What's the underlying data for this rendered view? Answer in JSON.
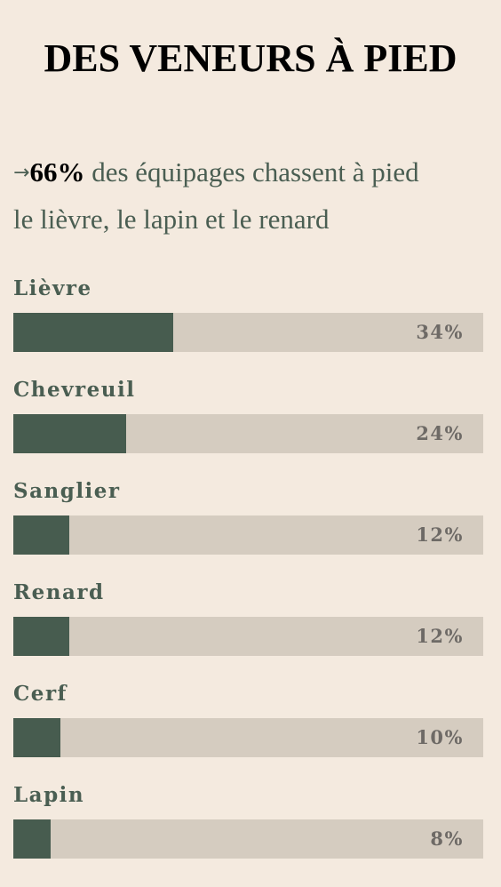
{
  "title": "DES VENEURS À PIED",
  "intro": {
    "arrow": "→",
    "highlight": "66%",
    "text_line1": " des équipages chassent à pied",
    "text_line2": "le lièvre, le lapin et le renard"
  },
  "colors": {
    "background": "#f4eadf",
    "bar_fill": "#475c4f",
    "bar_track": "#d5ccc0",
    "label_text": "#4a5e52",
    "value_text": "#6e6a66"
  },
  "chart_data": {
    "type": "bar",
    "orientation": "horizontal",
    "categories": [
      "Lièvre",
      "Chevreuil",
      "Sanglier",
      "Renard",
      "Cerf",
      "Lapin"
    ],
    "values": [
      34,
      24,
      12,
      12,
      10,
      8
    ],
    "value_labels": [
      "34%",
      "24%",
      "12%",
      "12%",
      "10%",
      "8%"
    ],
    "unit": "%",
    "xlim": [
      0,
      100
    ],
    "grid": false,
    "legend": "none"
  }
}
